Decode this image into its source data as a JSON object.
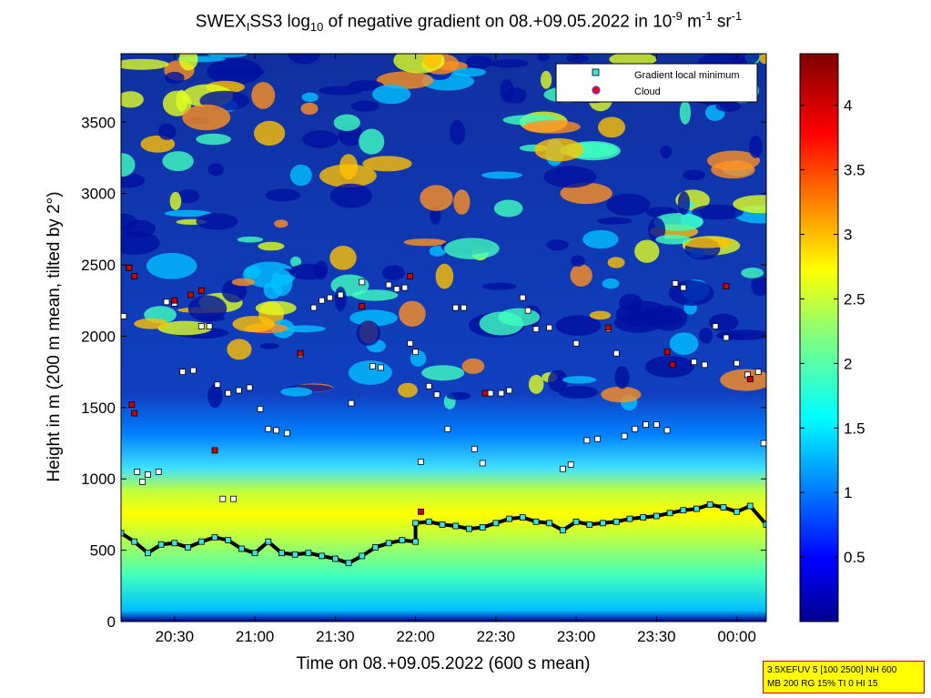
{
  "title": {
    "prefix": "SWEX",
    "sub1": "I",
    "mid": "SS3 log",
    "sub2": "10",
    "rest": " of negative gradient on 08.+09.05.2022 in 10",
    "sup1": "-9",
    "unit1": " m",
    "sup2": "-1",
    "unit2": " sr",
    "sup3": "-1"
  },
  "info_box": {
    "line1": "3.5XEFUV 5 [100 2500] NH 600",
    "line2": "MB 200 RG 15% TI 0 HI 15"
  },
  "colors": {
    "jet_low": "#00008f",
    "jet_mid": "#80ff80",
    "jet_high": "#800000",
    "marker_fill": "#ffffff",
    "cloud_fill": "#cc0000",
    "legend_square": "#40e0e0",
    "legend_cloud": "#ff0000"
  },
  "chart_data": {
    "type": "heatmap",
    "xlabel": "Time on 08.+09.05.2022 (600 s mean)",
    "ylabel": "Height in m (200 m mean, tilted by 2°)",
    "x_ticks": [
      "20:30",
      "21:00",
      "21:30",
      "22:00",
      "22:30",
      "23:00",
      "23:30",
      "00:00"
    ],
    "x_tick_minutes": [
      1230,
      1260,
      1290,
      1320,
      1350,
      1380,
      1410,
      1440
    ],
    "xlim_minutes": [
      1210,
      1451
    ],
    "y_ticks": [
      0,
      500,
      1000,
      1500,
      2000,
      2500,
      3000,
      3500
    ],
    "ylim": [
      0,
      3980
    ],
    "colorbar": {
      "ticks": [
        "0.5",
        "1",
        "1.5",
        "2",
        "2.5",
        "3",
        "3.5",
        "4"
      ],
      "tick_values": [
        0.5,
        1,
        1.5,
        2,
        2.5,
        3,
        3.5,
        4
      ],
      "range": [
        0,
        4.4
      ],
      "colormap": "jet"
    },
    "legend": {
      "placement": "top-right",
      "entries": [
        "Gradient local minimum",
        "Cloud"
      ]
    },
    "boundary_layer": {
      "name": "Gradient local minimum",
      "x_minutes": [
        1210,
        1215,
        1220,
        1225,
        1230,
        1235,
        1240,
        1245,
        1250,
        1255,
        1260,
        1265,
        1270,
        1275,
        1280,
        1285,
        1290,
        1295,
        1300,
        1305,
        1310,
        1315,
        1320,
        1320,
        1325,
        1330,
        1335,
        1340,
        1345,
        1350,
        1355,
        1360,
        1365,
        1370,
        1375,
        1380,
        1385,
        1390,
        1395,
        1400,
        1405,
        1410,
        1415,
        1420,
        1425,
        1430,
        1435,
        1440,
        1445,
        1451
      ],
      "heights": [
        620,
        560,
        480,
        540,
        550,
        520,
        560,
        590,
        570,
        510,
        480,
        560,
        480,
        470,
        480,
        460,
        440,
        410,
        460,
        520,
        550,
        570,
        560,
        690,
        700,
        680,
        670,
        650,
        660,
        690,
        720,
        730,
        700,
        690,
        640,
        700,
        680,
        690,
        700,
        720,
        730,
        740,
        760,
        780,
        790,
        820,
        800,
        770,
        810,
        680
      ]
    },
    "scatter_points": [
      [
        1211,
        2140
      ],
      [
        1213,
        2480
      ],
      [
        1216,
        1050
      ],
      [
        1218,
        980
      ],
      [
        1220,
        1030
      ],
      [
        1224,
        1050
      ],
      [
        1227,
        2240
      ],
      [
        1230,
        2230
      ],
      [
        1233,
        1750
      ],
      [
        1237,
        1760
      ],
      [
        1240,
        2070
      ],
      [
        1243,
        2070
      ],
      [
        1246,
        1660
      ],
      [
        1250,
        1600
      ],
      [
        1254,
        1620
      ],
      [
        1258,
        1640
      ],
      [
        1248,
        860
      ],
      [
        1252,
        860
      ],
      [
        1262,
        1490
      ],
      [
        1265,
        1350
      ],
      [
        1268,
        1340
      ],
      [
        1272,
        1320
      ],
      [
        1277,
        1870
      ],
      [
        1282,
        2200
      ],
      [
        1285,
        2250
      ],
      [
        1288,
        2270
      ],
      [
        1292,
        2290
      ],
      [
        1296,
        1530
      ],
      [
        1300,
        2380
      ],
      [
        1304,
        1790
      ],
      [
        1307,
        1780
      ],
      [
        1310,
        2360
      ],
      [
        1313,
        2330
      ],
      [
        1316,
        2340
      ],
      [
        1318,
        1950
      ],
      [
        1320,
        1890
      ],
      [
        1322,
        1120
      ],
      [
        1325,
        1650
      ],
      [
        1328,
        1590
      ],
      [
        1332,
        1350
      ],
      [
        1335,
        2200
      ],
      [
        1338,
        2200
      ],
      [
        1342,
        1210
      ],
      [
        1345,
        1110
      ],
      [
        1348,
        1600
      ],
      [
        1352,
        1600
      ],
      [
        1355,
        1620
      ],
      [
        1360,
        2270
      ],
      [
        1362,
        2180
      ],
      [
        1365,
        2050
      ],
      [
        1370,
        2060
      ],
      [
        1375,
        1070
      ],
      [
        1378,
        1100
      ],
      [
        1380,
        1950
      ],
      [
        1384,
        1270
      ],
      [
        1388,
        1280
      ],
      [
        1392,
        2050
      ],
      [
        1395,
        1880
      ],
      [
        1398,
        1300
      ],
      [
        1402,
        1350
      ],
      [
        1406,
        1380
      ],
      [
        1410,
        1380
      ],
      [
        1414,
        1340
      ],
      [
        1417,
        2370
      ],
      [
        1420,
        2340
      ],
      [
        1424,
        1820
      ],
      [
        1428,
        1800
      ],
      [
        1432,
        2070
      ],
      [
        1436,
        1990
      ],
      [
        1440,
        1810
      ],
      [
        1444,
        1730
      ],
      [
        1448,
        1750
      ],
      [
        1450,
        1250
      ]
    ],
    "cloud_points": [
      [
        1213,
        2480
      ],
      [
        1215,
        2420
      ],
      [
        1215,
        1460
      ],
      [
        1214,
        1520
      ],
      [
        1230,
        2250
      ],
      [
        1236,
        2290
      ],
      [
        1240,
        2320
      ],
      [
        1245,
        1200
      ],
      [
        1277,
        1880
      ],
      [
        1300,
        2210
      ],
      [
        1318,
        2420
      ],
      [
        1322,
        770
      ],
      [
        1346,
        1600
      ],
      [
        1392,
        2060
      ],
      [
        1414,
        1890
      ],
      [
        1416,
        1800
      ],
      [
        1436,
        2350
      ],
      [
        1445,
        1700
      ]
    ]
  }
}
